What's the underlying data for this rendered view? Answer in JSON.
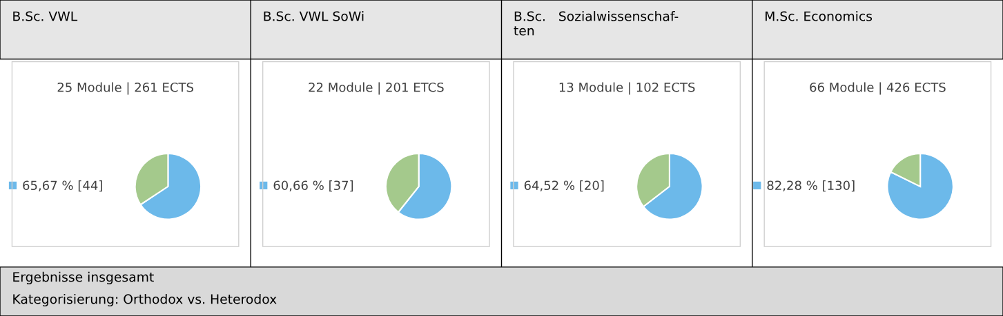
{
  "chart_data": [
    {
      "type": "pie",
      "title": "25 Module | 261 ECTS",
      "categories": [
        "65,67 % [44]",
        null
      ],
      "values": [
        65.67,
        34.33
      ],
      "colors": [
        "#6cb9ea",
        "#a4c98c"
      ],
      "legend": "left",
      "annotations": [
        "B.Sc. VWL",
        "Ergebnisse insgesamt",
        "Kategorisierung: Orthodox vs. Heterodox"
      ]
    },
    {
      "type": "pie",
      "title": "22 Module | 201 ETCS",
      "categories": [
        "60,66 % [37]",
        null
      ],
      "values": [
        60.66,
        39.34
      ],
      "colors": [
        "#6cb9ea",
        "#a4c98c"
      ],
      "legend": "left",
      "annotations": [
        "B.Sc. VWL SoWi"
      ]
    },
    {
      "type": "pie",
      "title": "13 Module | 102 ECTS",
      "categories": [
        "64,52 % [20]",
        null
      ],
      "values": [
        64.52,
        35.48
      ],
      "colors": [
        "#6cb9ea",
        "#a4c98c"
      ],
      "legend": "left",
      "annotations": [
        "B.Sc.   Sozialwissenschaf-\nten"
      ]
    },
    {
      "type": "pie",
      "title": "66 Module | 426 ECTS",
      "categories": [
        "82,28 % [130]",
        null
      ],
      "values": [
        82.28,
        17.72
      ],
      "colors": [
        "#6cb9ea",
        "#a4c98c"
      ],
      "legend": "left",
      "annotations": [
        "M.Sc. Economics"
      ]
    }
  ]
}
